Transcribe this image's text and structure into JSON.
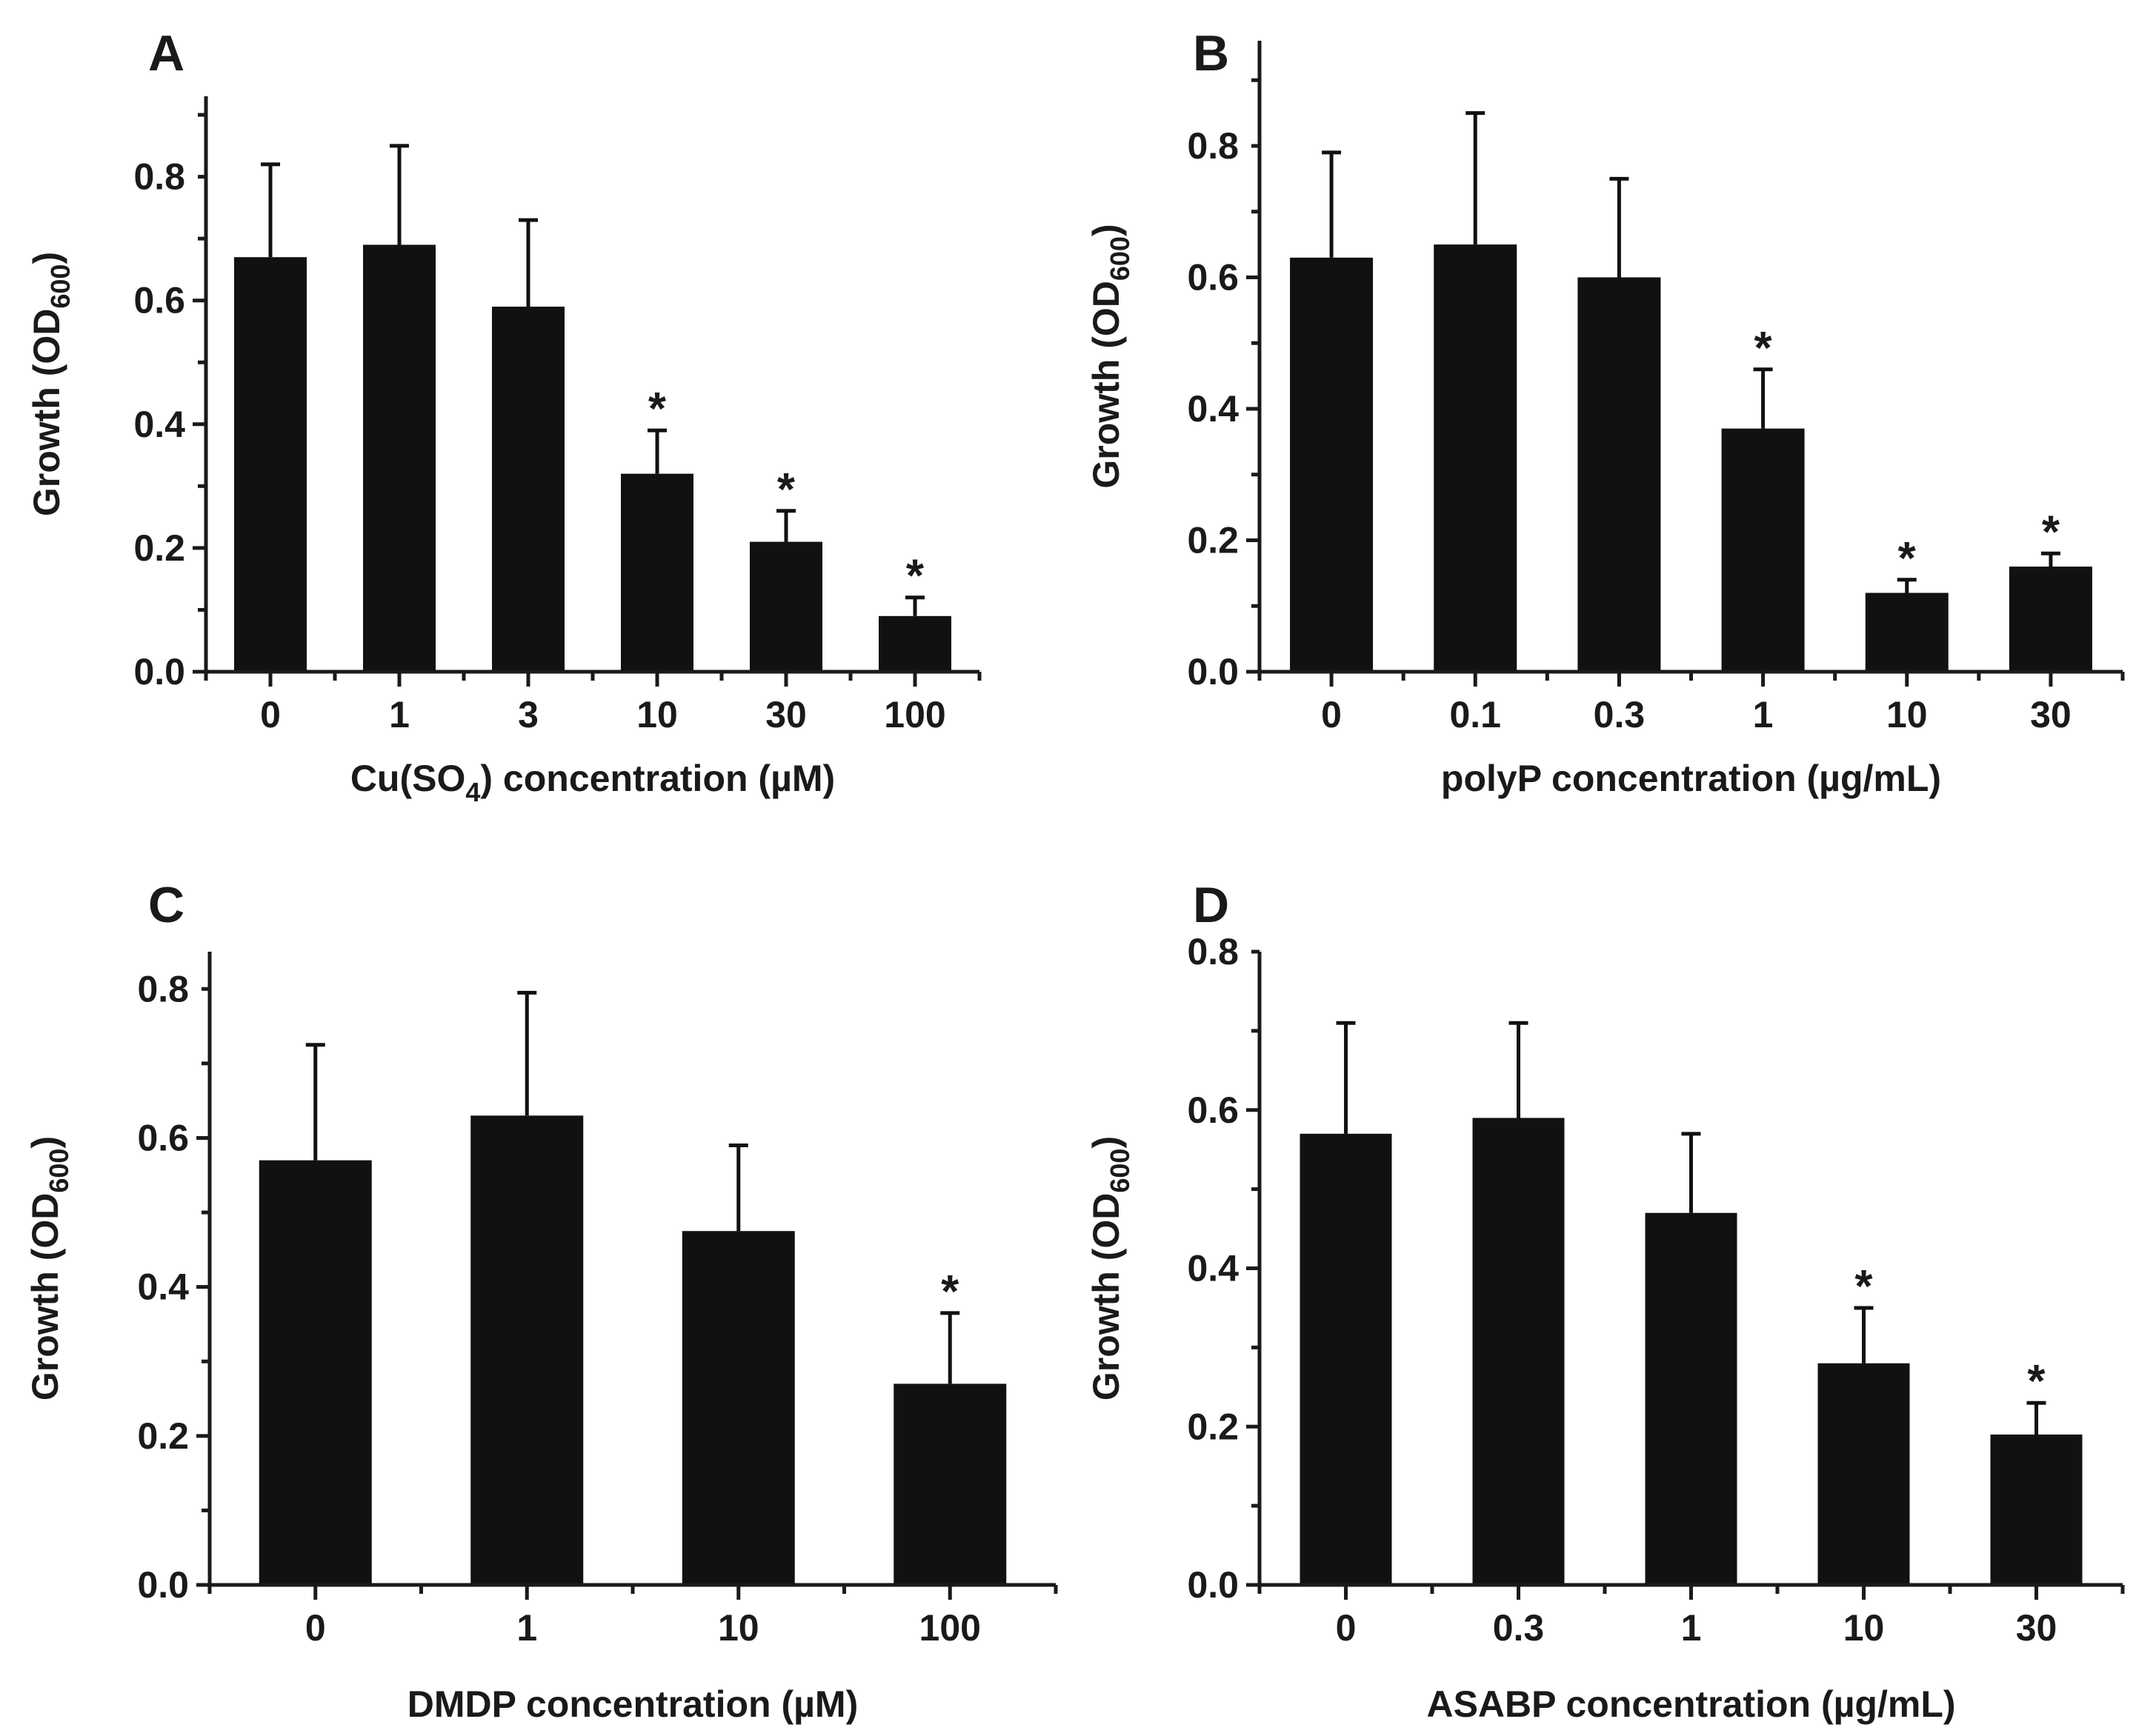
{
  "chart_data": [
    {
      "type": "bar",
      "panel": "A",
      "categories": [
        "0",
        "1",
        "3",
        "10",
        "30",
        "100"
      ],
      "values": [
        0.67,
        0.69,
        0.59,
        0.32,
        0.21,
        0.09
      ],
      "errors": [
        0.15,
        0.16,
        0.14,
        0.07,
        0.05,
        0.03
      ],
      "significant": [
        false,
        false,
        false,
        true,
        true,
        true
      ],
      "star_label": "*",
      "xlabel_parts": {
        "pre": "Cu(SO",
        "sub": "4",
        "post": ") concentration (µM)"
      },
      "ylabel_parts": {
        "pre": "Growth (OD",
        "sub": "600",
        "post": ")"
      },
      "ylim": [
        0,
        0.93
      ],
      "yticks": [
        "0.0",
        "0.2",
        "0.4",
        "0.6",
        "0.8"
      ],
      "ytick_values": [
        0,
        0.2,
        0.4,
        0.6,
        0.8
      ]
    },
    {
      "type": "bar",
      "panel": "B",
      "categories": [
        "0",
        "0.1",
        "0.3",
        "1",
        "10",
        "30"
      ],
      "values": [
        0.63,
        0.65,
        0.6,
        0.37,
        0.12,
        0.16
      ],
      "errors": [
        0.16,
        0.2,
        0.15,
        0.09,
        0.02,
        0.02
      ],
      "significant": [
        false,
        false,
        false,
        true,
        true,
        true
      ],
      "star_label": "*",
      "xlabel_parts": {
        "pre": "polyP concentration (µg/mL)",
        "sub": "",
        "post": ""
      },
      "ylabel_parts": {
        "pre": "Growth (OD",
        "sub": "600",
        "post": ")"
      },
      "ylim": [
        0,
        0.96
      ],
      "yticks": [
        "0.0",
        "0.2",
        "0.4",
        "0.6",
        "0.8"
      ],
      "ytick_values": [
        0,
        0.2,
        0.4,
        0.6,
        0.8
      ]
    },
    {
      "type": "bar",
      "panel": "C",
      "categories": [
        "0",
        "1",
        "10",
        "100"
      ],
      "values": [
        0.57,
        0.63,
        0.475,
        0.27
      ],
      "errors": [
        0.155,
        0.165,
        0.115,
        0.095
      ],
      "significant": [
        false,
        false,
        false,
        true
      ],
      "star_label": "*",
      "xlabel_parts": {
        "pre": "DMDP concentration (µM)",
        "sub": "",
        "post": ""
      },
      "ylabel_parts": {
        "pre": "Growth (OD",
        "sub": "600",
        "post": ")"
      },
      "ylim": [
        0,
        0.85
      ],
      "yticks": [
        "0.0",
        "0.2",
        "0.4",
        "0.6",
        "0.8"
      ],
      "ytick_values": [
        0,
        0.2,
        0.4,
        0.6,
        0.8
      ]
    },
    {
      "type": "bar",
      "panel": "D",
      "categories": [
        "0",
        "0.3",
        "1",
        "10",
        "30"
      ],
      "values": [
        0.57,
        0.59,
        0.47,
        0.28,
        0.19
      ],
      "errors": [
        0.14,
        0.12,
        0.1,
        0.07,
        0.04
      ],
      "significant": [
        false,
        false,
        false,
        true,
        true
      ],
      "star_label": "*",
      "xlabel_parts": {
        "pre": "ASABP concentration (µg/mL)",
        "sub": "",
        "post": ""
      },
      "ylabel_parts": {
        "pre": "Growth (OD",
        "sub": "600",
        "post": ")"
      },
      "ylim": [
        0,
        0.8
      ],
      "yticks": [
        "0.0",
        "0.2",
        "0.4",
        "0.6",
        "0.8"
      ],
      "ytick_values": [
        0,
        0.2,
        0.4,
        0.6,
        0.8
      ]
    }
  ],
  "colors": {
    "bar": "#111111",
    "axis": "#1a1a1a",
    "background": "#ffffff"
  }
}
